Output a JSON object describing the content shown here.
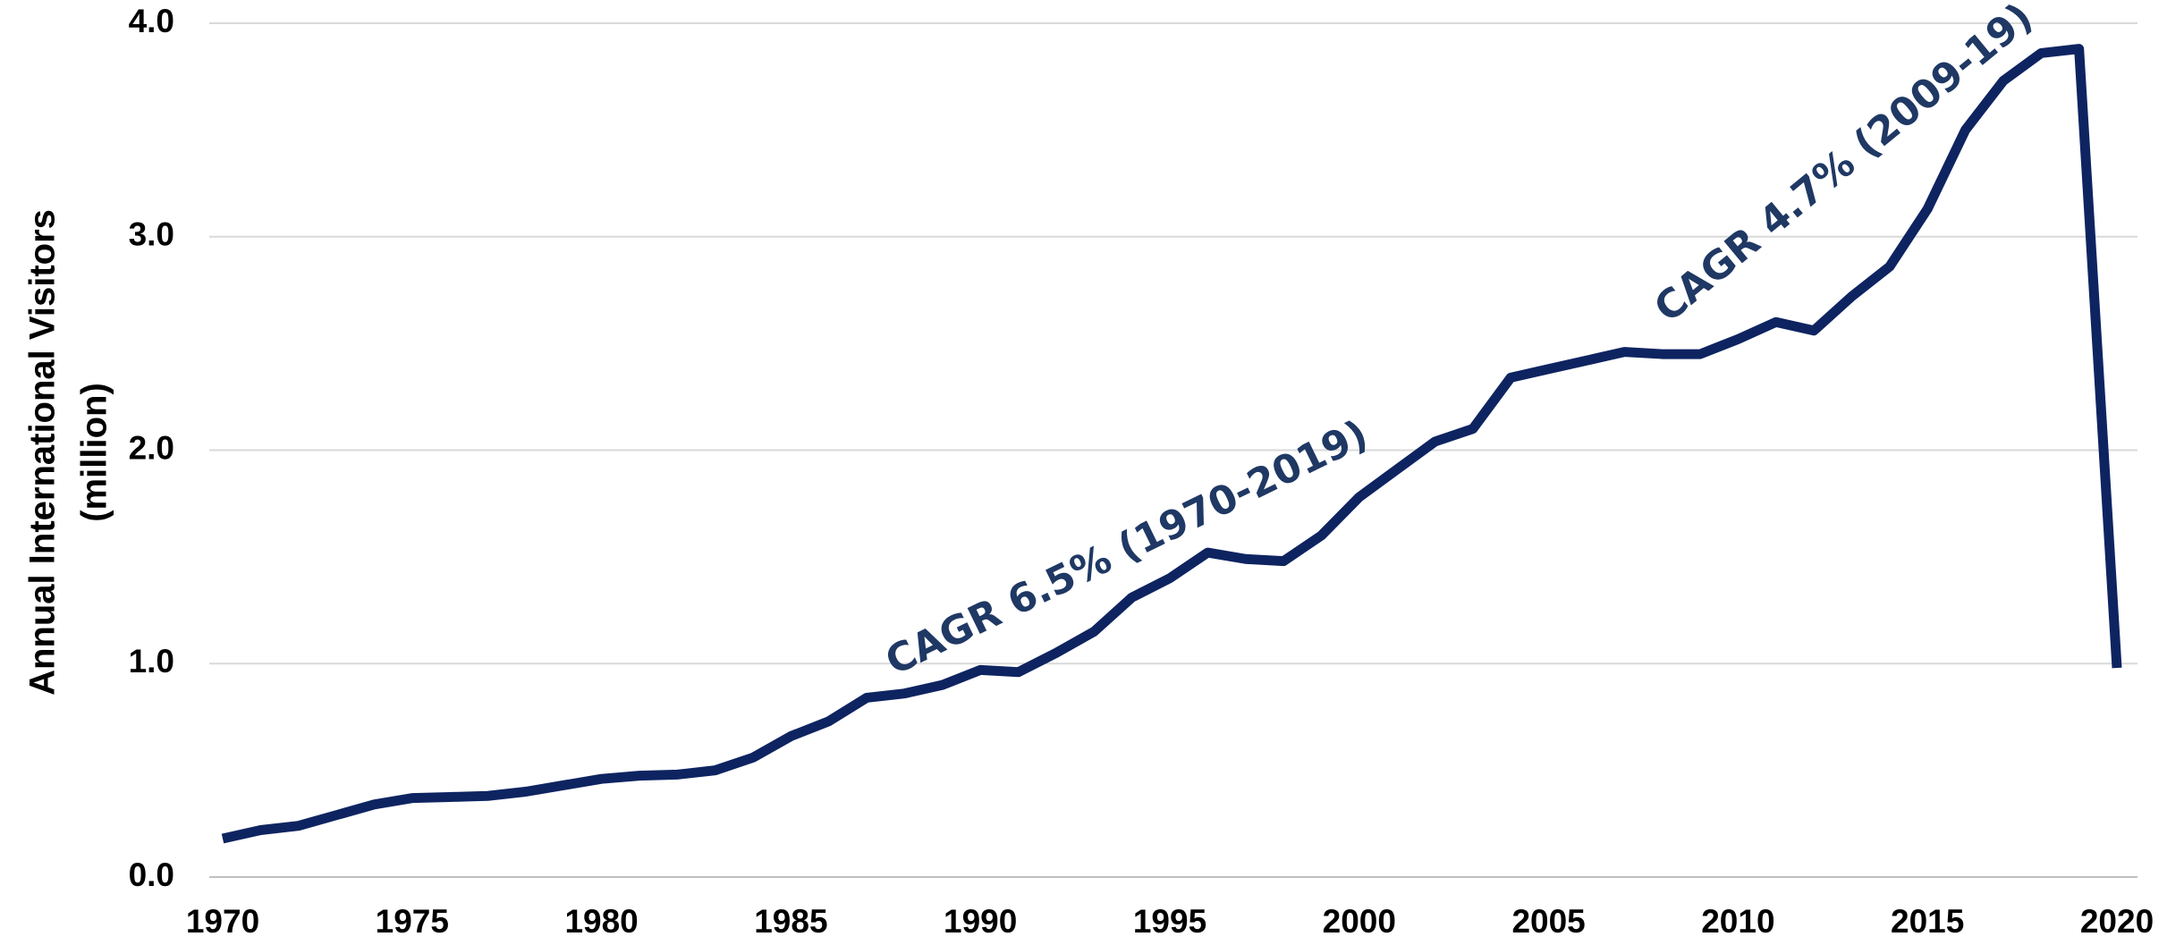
{
  "chart_data": {
    "type": "line",
    "y_label_lines": [
      "Annual International Visitors",
      "(million)"
    ],
    "annotations": [
      "CAGR 6.5% (1970-2019)",
      "CAGR 4.7% (2009-19)"
    ],
    "x": [
      1970,
      1971,
      1972,
      1973,
      1974,
      1975,
      1976,
      1977,
      1978,
      1979,
      1980,
      1981,
      1982,
      1983,
      1984,
      1985,
      1986,
      1987,
      1988,
      1989,
      1990,
      1991,
      1992,
      1993,
      1994,
      1995,
      1996,
      1997,
      1998,
      1999,
      2000,
      2001,
      2002,
      2003,
      2004,
      2005,
      2006,
      2007,
      2008,
      2009,
      2010,
      2011,
      2012,
      2013,
      2014,
      2015,
      2016,
      2017,
      2018,
      2019,
      2020
    ],
    "series": [
      {
        "color": "#0e2461",
        "values": [
          0.18,
          0.22,
          0.24,
          0.29,
          0.34,
          0.37,
          0.375,
          0.38,
          0.4,
          0.43,
          0.46,
          0.475,
          0.48,
          0.5,
          0.56,
          0.66,
          0.73,
          0.84,
          0.86,
          0.9,
          0.97,
          0.96,
          1.05,
          1.15,
          1.31,
          1.4,
          1.52,
          1.49,
          1.48,
          1.6,
          1.78,
          1.91,
          2.04,
          2.1,
          2.34,
          2.38,
          2.42,
          2.46,
          2.45,
          2.45,
          2.52,
          2.6,
          2.56,
          2.72,
          2.86,
          3.13,
          3.5,
          3.73,
          3.86,
          3.88,
          0.98
        ]
      }
    ],
    "xlim": [
      1970,
      2020
    ],
    "xticks": [
      1970,
      1975,
      1980,
      1985,
      1990,
      1995,
      2000,
      2005,
      2010,
      2015,
      2020
    ],
    "ylim": [
      0,
      4
    ],
    "yticks": [
      {
        "value": 0,
        "label": "0.0"
      },
      {
        "value": 1,
        "label": "1.0"
      },
      {
        "value": 2,
        "label": "2.0"
      },
      {
        "value": 3,
        "label": "3.0"
      },
      {
        "value": 4,
        "label": "4.0"
      }
    ],
    "grid": true,
    "annotation_color": "#1f3864"
  }
}
